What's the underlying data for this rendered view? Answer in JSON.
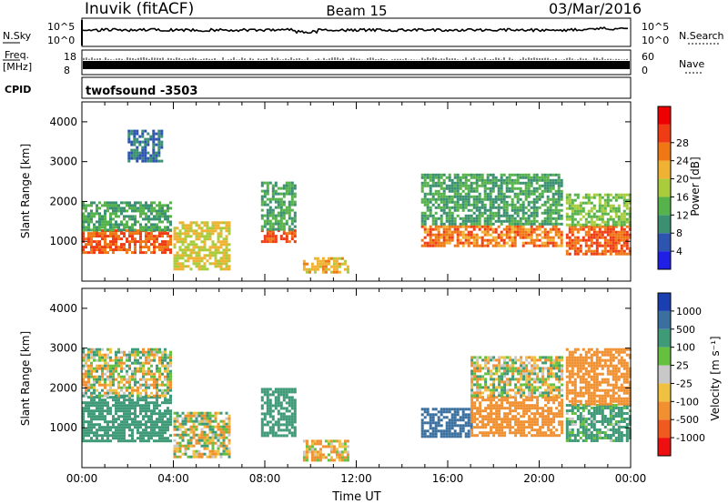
{
  "header": {
    "station": "Inuvik (fitACF)",
    "beam": "Beam 15",
    "date": "03/Mar/2016"
  },
  "top_panels": {
    "nsky_label": "N.Sky",
    "nsky_ticks": [
      "10^5",
      "10^0"
    ],
    "nsearch_label": "N.Search",
    "nsearch_ticks": [
      "10^5",
      "10^0"
    ],
    "freq_label_1": "Freq.",
    "freq_label_2": "[MHz]",
    "freq_ticks": [
      "18",
      "8"
    ],
    "nave_label": "Nave",
    "nave_ticks": [
      "60",
      "0"
    ],
    "cpid_label": "CPID",
    "cpid_value": "twofsound -3503"
  },
  "colors": {
    "nsky_trace": "#000000"
  },
  "chart_data": [
    {
      "type": "heatmap",
      "title": "",
      "xlabel": "",
      "ylabel": "Slant Range [km]",
      "y_ticks": [
        "1000",
        "2000",
        "3000",
        "4000"
      ],
      "x_ticks": [],
      "colorbar": {
        "label": "Power [dB]",
        "ticks": [
          "4",
          "8",
          "12",
          "16",
          "20",
          "24",
          "28"
        ],
        "colors": [
          "#1f1fe6",
          "#2d55b0",
          "#3a9070",
          "#56b24a",
          "#a8cc3c",
          "#f0b232",
          "#f07814",
          "#f03c14",
          "#ee0000"
        ]
      },
      "echo_regions": [
        {
          "time": "00:00-03:50",
          "range_km": [
            700,
            1300
          ],
          "power_db": 28
        },
        {
          "time": "00:00-03:50",
          "range_km": [
            1300,
            2000
          ],
          "power_db": 12
        },
        {
          "time": "02:00-03:30",
          "range_km": [
            3000,
            3800
          ],
          "power_db": 8
        },
        {
          "time": "04:00-06:30",
          "range_km": [
            300,
            1500
          ],
          "power_db": 20
        },
        {
          "time": "07:50-09:20",
          "range_km": [
            1000,
            1300
          ],
          "power_db": 28
        },
        {
          "time": "07:50-09:20",
          "range_km": [
            1300,
            2500
          ],
          "power_db": 12
        },
        {
          "time": "09:40-11:40",
          "range_km": [
            200,
            600
          ],
          "power_db": 22
        },
        {
          "time": "14:50-21:00",
          "range_km": [
            900,
            1400
          ],
          "power_db": 26
        },
        {
          "time": "14:50-21:00",
          "range_km": [
            1400,
            2700
          ],
          "power_db": 12
        },
        {
          "time": "21:10-24:00",
          "range_km": [
            700,
            1400
          ],
          "power_db": 28
        },
        {
          "time": "21:10-24:00",
          "range_km": [
            1400,
            2200
          ],
          "power_db": 16
        }
      ]
    },
    {
      "type": "heatmap",
      "title": "",
      "xlabel": "Time UT",
      "ylabel": "Slant Range [km]",
      "y_ticks": [
        "1000",
        "2000",
        "3000",
        "4000"
      ],
      "x_ticks": [
        "00:00",
        "04:00",
        "08:00",
        "12:00",
        "16:00",
        "20:00",
        "00:00"
      ],
      "colorbar": {
        "label": "Velocity [m s⁻¹]",
        "ticks": [
          "1000",
          "500",
          "100",
          "25",
          "-25",
          "-100",
          "-500",
          "-1000"
        ],
        "colors": [
          "#1a3fb0",
          "#3a70a0",
          "#3f9a78",
          "#66c040",
          "#c8c8c8",
          "#f0c040",
          "#f09030",
          "#f05a1e",
          "#ee1010"
        ]
      },
      "echo_regions": [
        {
          "time": "00:00-03:50",
          "range_km": [
            700,
            1800
          ],
          "velocity_ms": 300
        },
        {
          "time": "00:00-03:50",
          "range_km": [
            1800,
            3000
          ],
          "velocity_ms": 0
        },
        {
          "time": "04:00-06:30",
          "range_km": [
            300,
            1400
          ],
          "velocity_ms": 0
        },
        {
          "time": "07:50-09:20",
          "range_km": [
            800,
            2000
          ],
          "velocity_ms": 300
        },
        {
          "time": "09:40-11:40",
          "range_km": [
            200,
            700
          ],
          "velocity_ms": -100
        },
        {
          "time": "14:50-17:00",
          "range_km": [
            800,
            1500
          ],
          "velocity_ms": 700
        },
        {
          "time": "17:00-21:00",
          "range_km": [
            800,
            1800
          ],
          "velocity_ms": -300
        },
        {
          "time": "17:00-21:00",
          "range_km": [
            1800,
            2800
          ],
          "velocity_ms": 0
        },
        {
          "time": "21:10-24:00",
          "range_km": [
            700,
            1600
          ],
          "velocity_ms": 200
        },
        {
          "time": "21:10-24:00",
          "range_km": [
            1600,
            3000
          ],
          "velocity_ms": -300
        }
      ]
    }
  ]
}
